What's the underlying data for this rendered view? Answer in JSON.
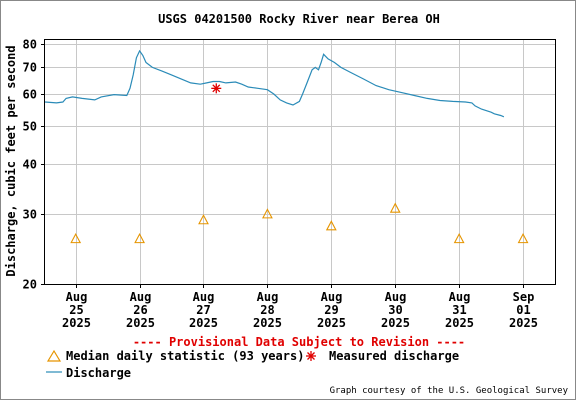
{
  "chart_data": {
    "type": "line",
    "title": "USGS 04201500 Rocky River near Berea OH",
    "ylabel": "Discharge, cubic feet per second",
    "yscale": "log",
    "ylim": [
      20,
      82
    ],
    "y_ticks": [
      {
        "value": 20,
        "label": "20"
      },
      {
        "value": 30,
        "label": "30"
      },
      {
        "value": 40,
        "label": "40"
      },
      {
        "value": 50,
        "label": "50"
      },
      {
        "value": 60,
        "label": "60"
      },
      {
        "value": 70,
        "label": "70"
      },
      {
        "value": 80,
        "label": "80"
      }
    ],
    "x_ticks": [
      {
        "day": 0,
        "lines": [
          "Aug",
          "25",
          "2025"
        ]
      },
      {
        "day": 1,
        "lines": [
          "Aug",
          "26",
          "2025"
        ]
      },
      {
        "day": 2,
        "lines": [
          "Aug",
          "27",
          "2025"
        ]
      },
      {
        "day": 3,
        "lines": [
          "Aug",
          "28",
          "2025"
        ]
      },
      {
        "day": 4,
        "lines": [
          "Aug",
          "29",
          "2025"
        ]
      },
      {
        "day": 5,
        "lines": [
          "Aug",
          "30",
          "2025"
        ]
      },
      {
        "day": 6,
        "lines": [
          "Aug",
          "31",
          "2025"
        ]
      },
      {
        "day": 7,
        "lines": [
          "Sep",
          "01",
          "2025"
        ]
      }
    ],
    "xlim_days": [
      -0.48,
      7.5
    ],
    "series": [
      {
        "name": "Discharge",
        "color": "#2a8bb8",
        "points": [
          [
            -0.48,
            57.3
          ],
          [
            -0.3,
            57.0
          ],
          [
            -0.2,
            57.3
          ],
          [
            -0.15,
            58.5
          ],
          [
            -0.05,
            59.0
          ],
          [
            0.1,
            58.5
          ],
          [
            0.3,
            58.0
          ],
          [
            0.4,
            59.0
          ],
          [
            0.6,
            59.8
          ],
          [
            0.8,
            59.5
          ],
          [
            0.85,
            62.0
          ],
          [
            0.9,
            67.0
          ],
          [
            0.95,
            74.0
          ],
          [
            1.0,
            77.0
          ],
          [
            1.05,
            75.0
          ],
          [
            1.1,
            72.0
          ],
          [
            1.2,
            70.0
          ],
          [
            1.35,
            68.5
          ],
          [
            1.5,
            67.0
          ],
          [
            1.65,
            65.5
          ],
          [
            1.8,
            64.0
          ],
          [
            1.95,
            63.5
          ],
          [
            2.05,
            64.0
          ],
          [
            2.15,
            64.5
          ],
          [
            2.25,
            64.5
          ],
          [
            2.35,
            64.0
          ],
          [
            2.5,
            64.3
          ],
          [
            2.6,
            63.5
          ],
          [
            2.7,
            62.5
          ],
          [
            2.85,
            62.0
          ],
          [
            3.0,
            61.5
          ],
          [
            3.1,
            60.0
          ],
          [
            3.2,
            58.0
          ],
          [
            3.3,
            57.0
          ],
          [
            3.4,
            56.3
          ],
          [
            3.5,
            57.5
          ],
          [
            3.55,
            60.0
          ],
          [
            3.62,
            64.0
          ],
          [
            3.7,
            69.0
          ],
          [
            3.75,
            70.0
          ],
          [
            3.8,
            69.0
          ],
          [
            3.84,
            72.0
          ],
          [
            3.88,
            75.5
          ],
          [
            3.95,
            73.5
          ],
          [
            4.05,
            72.0
          ],
          [
            4.15,
            70.0
          ],
          [
            4.3,
            68.0
          ],
          [
            4.5,
            65.5
          ],
          [
            4.7,
            63.0
          ],
          [
            4.9,
            61.5
          ],
          [
            5.1,
            60.5
          ],
          [
            5.3,
            59.5
          ],
          [
            5.5,
            58.5
          ],
          [
            5.7,
            57.8
          ],
          [
            5.9,
            57.5
          ],
          [
            6.1,
            57.3
          ],
          [
            6.2,
            57.0
          ],
          [
            6.25,
            56.0
          ],
          [
            6.35,
            55.0
          ],
          [
            6.5,
            54.0
          ],
          [
            6.55,
            53.5
          ],
          [
            6.65,
            53.0
          ],
          [
            6.7,
            52.6
          ]
        ]
      },
      {
        "name": "Median daily statistic (93 years)",
        "color": "#e69500",
        "marker": "triangle",
        "points": [
          [
            0,
            26
          ],
          [
            1,
            26
          ],
          [
            2,
            29
          ],
          [
            3,
            30
          ],
          [
            4,
            28
          ],
          [
            5,
            31
          ],
          [
            6,
            26
          ],
          [
            7,
            26
          ]
        ]
      },
      {
        "name": "Measured discharge",
        "color": "#e00000",
        "marker": "asterisk",
        "points": [
          [
            2.2,
            62
          ]
        ]
      }
    ],
    "grid": true,
    "legend_placement": "bottom-left"
  },
  "notice": "---- Provisional Data Subject to Revision ----",
  "legend": {
    "median": "Median daily statistic (93 years)",
    "measured": "Measured discharge",
    "discharge": "Discharge"
  },
  "credit": "Graph courtesy of the U.S. Geological Survey"
}
